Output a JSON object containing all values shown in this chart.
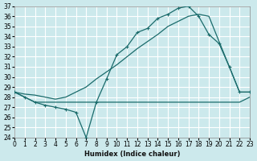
{
  "bg_color": "#cce9ec",
  "grid_color": "#ffffff",
  "line_color": "#1a6b6b",
  "xlabel": "Humidex (Indice chaleur)",
  "ylim": [
    24,
    37
  ],
  "xlim": [
    0,
    23
  ],
  "yticks": [
    24,
    25,
    26,
    27,
    28,
    29,
    30,
    31,
    32,
    33,
    34,
    35,
    36,
    37
  ],
  "xticks": [
    0,
    1,
    2,
    3,
    4,
    5,
    6,
    7,
    8,
    9,
    10,
    11,
    12,
    13,
    14,
    15,
    16,
    17,
    18,
    19,
    20,
    21,
    22,
    23
  ],
  "curve_arch_x": [
    0,
    1,
    2,
    3,
    4,
    5,
    6,
    7,
    8,
    9,
    10,
    11,
    12,
    13,
    14,
    15,
    16,
    17,
    18,
    19,
    20,
    21,
    22,
    23
  ],
  "curve_arch_y": [
    28.5,
    28.0,
    27.5,
    27.2,
    27.0,
    26.8,
    26.5,
    24.0,
    27.5,
    29.8,
    32.2,
    33.0,
    34.4,
    34.8,
    35.8,
    36.2,
    36.8,
    37.0,
    36.0,
    34.2,
    33.3,
    31.0,
    28.5,
    28.5
  ],
  "curve_diag_x": [
    0,
    1,
    2,
    3,
    4,
    5,
    6,
    7,
    8,
    9,
    10,
    11,
    12,
    13,
    14,
    15,
    16,
    17,
    18,
    19,
    20,
    21,
    22,
    23
  ],
  "curve_diag_y": [
    28.5,
    28.3,
    28.2,
    28.0,
    27.8,
    28.0,
    28.5,
    29.0,
    29.8,
    30.5,
    31.2,
    32.0,
    32.8,
    33.5,
    34.2,
    35.0,
    35.5,
    36.0,
    36.2,
    36.0,
    33.5,
    31.0,
    28.5,
    28.5
  ],
  "curve_flat_x": [
    0,
    1,
    2,
    3,
    4,
    5,
    6,
    7,
    8,
    9,
    10,
    11,
    12,
    13,
    14,
    15,
    16,
    17,
    18,
    19,
    20,
    21,
    22,
    23
  ],
  "curve_flat_y": [
    28.5,
    28.0,
    27.5,
    27.5,
    27.5,
    27.5,
    27.5,
    27.5,
    27.5,
    27.5,
    27.5,
    27.5,
    27.5,
    27.5,
    27.5,
    27.5,
    27.5,
    27.5,
    27.5,
    27.5,
    27.5,
    27.5,
    27.5,
    28.0
  ]
}
